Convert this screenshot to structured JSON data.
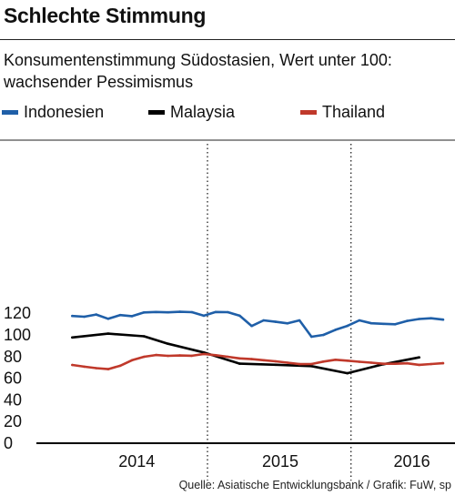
{
  "title": "Schlechte Stimmung",
  "subtitle": "Konsumentenstimmung Südostasien, Wert unter 100: wachsender Pessimismus",
  "source": "Quelle: Asiatische Entwicklungsbank / Grafik: FuW, sp",
  "chart_data": {
    "type": "line",
    "title": "",
    "subtitle": "Konsumentenstimmung Südostasien, Wert unter 100: wachsender Pessimismus",
    "xlabel": "",
    "ylabel": "",
    "ylim": [
      0,
      130
    ],
    "yticks": [
      0,
      20,
      40,
      60,
      80,
      100,
      120
    ],
    "xlim": [
      "2013-10",
      "2016-09"
    ],
    "year_labels": [
      {
        "label": "2014",
        "x": "2014-07"
      },
      {
        "label": "2015",
        "x": "2015-07"
      },
      {
        "label": "2016",
        "x": "2016-06"
      }
    ],
    "year_dividers": [
      "2014-12",
      "2015-12"
    ],
    "grid": false,
    "legend_position": "top",
    "series": [
      {
        "name": "Indonesien",
        "color": "#1f5fa8",
        "x": [
          "2014-01",
          "2014-02",
          "2014-03",
          "2014-04",
          "2014-05",
          "2014-06",
          "2014-07",
          "2014-08",
          "2014-09",
          "2014-10",
          "2014-11",
          "2014-12",
          "2015-01",
          "2015-02",
          "2015-03",
          "2015-04",
          "2015-05",
          "2015-06",
          "2015-07",
          "2015-08",
          "2015-09",
          "2015-10",
          "2015-11",
          "2015-12",
          "2016-01",
          "2016-02",
          "2016-03",
          "2016-04",
          "2016-05",
          "2016-06",
          "2016-07",
          "2016-08"
        ],
        "values": [
          116.6,
          116.0,
          118.0,
          114.0,
          117.5,
          116.5,
          119.9,
          120.3,
          120.0,
          120.5,
          120.2,
          116.9,
          120.3,
          120.2,
          116.9,
          107.4,
          112.6,
          111.3,
          109.8,
          112.6,
          97.5,
          99.2,
          103.9,
          107.5,
          112.6,
          109.9,
          109.4,
          109.0,
          112.1,
          113.9,
          114.5,
          113.3
        ]
      },
      {
        "name": "Malaysia",
        "color": "#000000",
        "x": [
          "2014-01",
          "2014-04",
          "2014-07",
          "2014-09",
          "2014-12",
          "2015-03",
          "2015-06",
          "2015-09",
          "2015-12",
          "2016-03",
          "2016-06"
        ],
        "values": [
          96.8,
          100.3,
          97.9,
          91.0,
          82.9,
          72.6,
          71.6,
          70.3,
          63.8,
          72.0,
          78.4
        ]
      },
      {
        "name": "Thailand",
        "color": "#c0392b",
        "x": [
          "2014-01",
          "2014-02",
          "2014-03",
          "2014-04",
          "2014-05",
          "2014-06",
          "2014-07",
          "2014-08",
          "2014-09",
          "2014-10",
          "2014-11",
          "2014-12",
          "2015-01",
          "2015-02",
          "2015-03",
          "2015-04",
          "2015-05",
          "2015-06",
          "2015-07",
          "2015-08",
          "2015-09",
          "2015-10",
          "2015-11",
          "2015-12",
          "2016-01",
          "2016-02",
          "2016-03",
          "2016-04",
          "2016-05",
          "2016-06",
          "2016-07",
          "2016-08"
        ],
        "values": [
          71.4,
          69.8,
          68.5,
          67.6,
          70.7,
          75.8,
          79.0,
          80.6,
          79.8,
          80.2,
          79.9,
          81.5,
          80.4,
          79.0,
          77.5,
          76.8,
          75.8,
          74.8,
          73.5,
          72.2,
          72.3,
          74.5,
          76.2,
          75.4,
          74.4,
          73.5,
          72.5,
          72.5,
          72.9,
          71.5,
          72.3,
          73.0
        ]
      }
    ]
  }
}
